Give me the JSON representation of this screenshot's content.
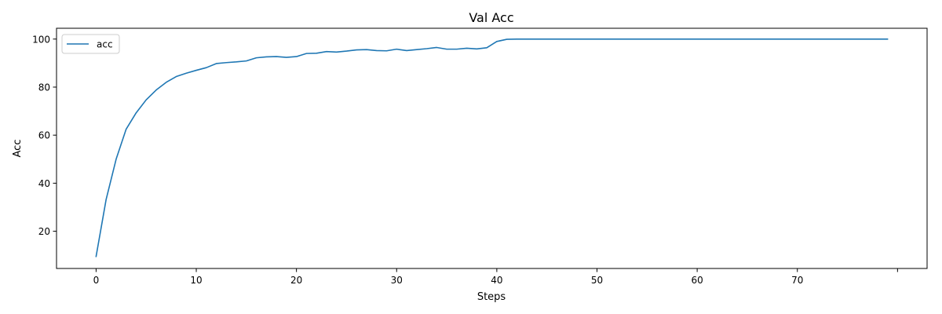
{
  "chart_data": {
    "type": "line",
    "title": "Val Acc",
    "xlabel": "Steps",
    "ylabel": "Acc",
    "xlim": [
      -3.95,
      82.95
    ],
    "ylim": [
      4.5,
      104.5
    ],
    "xticks": [
      0,
      10,
      20,
      30,
      40,
      50,
      60,
      70,
      80
    ],
    "xtick_labels": [
      "0",
      "10",
      "20",
      "30",
      "40",
      "50",
      "60",
      "70",
      ""
    ],
    "yticks": [
      20,
      40,
      60,
      80,
      100
    ],
    "ytick_labels": [
      "20",
      "40",
      "60",
      "80",
      "100"
    ],
    "grid": false,
    "legend": {
      "position": "upper-left",
      "entries": [
        "acc"
      ]
    },
    "series": [
      {
        "name": "acc",
        "color": "#1f77b4",
        "x": [
          0,
          1,
          2,
          3,
          4,
          5,
          6,
          7,
          8,
          9,
          10,
          11,
          12,
          13,
          14,
          15,
          16,
          17,
          18,
          19,
          20,
          21,
          22,
          23,
          24,
          25,
          26,
          27,
          28,
          29,
          30,
          31,
          32,
          33,
          34,
          35,
          36,
          37,
          38,
          39,
          40,
          41,
          42,
          43,
          44,
          45,
          46,
          47,
          48,
          49,
          50,
          51,
          52,
          53,
          54,
          55,
          56,
          57,
          58,
          59,
          60,
          61,
          62,
          63,
          64,
          65,
          66,
          67,
          68,
          69,
          70,
          71,
          72,
          73,
          74,
          75,
          76,
          77,
          78,
          79
        ],
        "values": [
          9.5,
          33.2,
          50.0,
          62.5,
          69.3,
          74.7,
          78.8,
          82.0,
          84.4,
          85.8,
          87.0,
          88.1,
          89.8,
          90.2,
          90.5,
          90.9,
          92.2,
          92.6,
          92.7,
          92.4,
          92.7,
          94.0,
          94.1,
          94.8,
          94.6,
          95.0,
          95.5,
          95.6,
          95.2,
          95.1,
          95.8,
          95.2,
          95.6,
          96.0,
          96.5,
          95.8,
          95.8,
          96.2,
          95.9,
          96.4,
          99.0,
          99.9,
          100,
          100,
          100,
          100,
          100,
          100,
          100,
          100,
          100,
          100,
          100,
          100,
          100,
          100,
          100,
          100,
          100,
          100,
          100,
          100,
          100,
          100,
          100,
          100,
          100,
          100,
          100,
          100,
          100,
          100,
          100,
          100,
          100,
          100,
          100,
          100,
          100,
          100
        ]
      }
    ]
  }
}
